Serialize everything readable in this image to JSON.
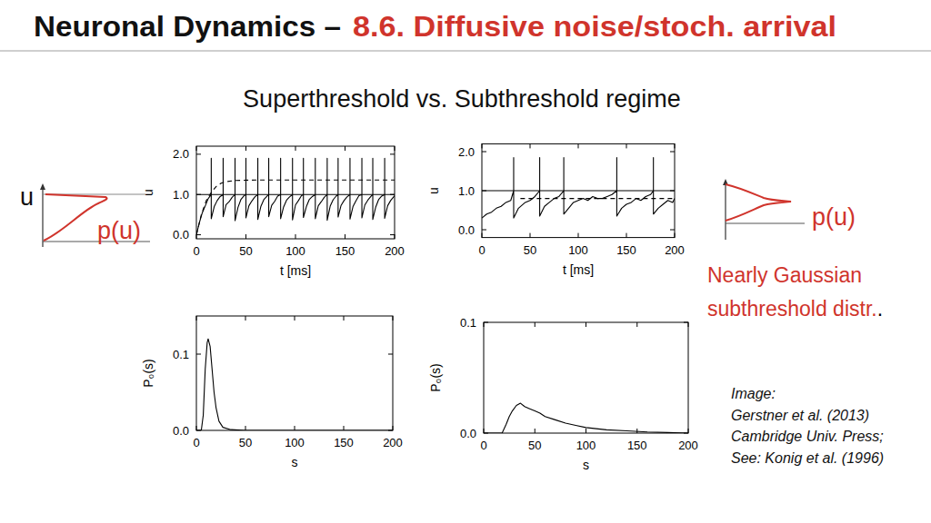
{
  "header": {
    "title_part1": "Neuronal Dynamics –",
    "title_part2": "8.6. Diffusive noise/stoch. arrival",
    "subtitle": "Superthreshold vs. Subthreshold regime"
  },
  "sketches": [
    {
      "ylabel": "u",
      "label": "p(u)"
    },
    {
      "label": "p(u)"
    }
  ],
  "note": {
    "lines": [
      "Nearly Gaussian",
      "subthreshold distr."
    ],
    "suffix": "."
  },
  "credit": [
    "Image:",
    "Gerstner et al. (2013)",
    "Cambridge Univ. Press;",
    "See: Konig et al. (1996)"
  ],
  "chart_data": [
    {
      "type": "line",
      "xlabel": "t [ms]",
      "ylabel": "u",
      "xlim": [
        0,
        200
      ],
      "ylim": [
        -0.1,
        2.2
      ],
      "xticks": [
        0,
        50,
        100,
        150,
        200
      ],
      "yticks": [
        {
          "value": 0,
          "label": "0.0"
        },
        {
          "value": 1,
          "label": "1.0"
        },
        {
          "value": 2,
          "label": "2.0"
        }
      ],
      "series": [
        {
          "color": "#000000",
          "line_style": "solid",
          "x": [
            0,
            3,
            6,
            9,
            12,
            15,
            15,
            15,
            18,
            21,
            24,
            27,
            27,
            27,
            30,
            33,
            36,
            39,
            39,
            39,
            42,
            45,
            48,
            50,
            50,
            50,
            53,
            56,
            59,
            62,
            62,
            62,
            65,
            68,
            71,
            73,
            73,
            73,
            76,
            79,
            82,
            85,
            85,
            85,
            88,
            91,
            94,
            97,
            97,
            97,
            100,
            103,
            106,
            108,
            108,
            108,
            111,
            114,
            117,
            120,
            120,
            120,
            123,
            126,
            129,
            132,
            132,
            132,
            135,
            138,
            141,
            143,
            143,
            143,
            146,
            149,
            152,
            155,
            155,
            155,
            158,
            161,
            164,
            167,
            167,
            167,
            170,
            173,
            176,
            178,
            178,
            178,
            181,
            184,
            187,
            190,
            190,
            190,
            193,
            196,
            199,
            200
          ],
          "values": [
            0,
            0.3,
            0.55,
            0.72,
            0.9,
            1,
            1.9,
            0.4,
            0.7,
            0.85,
            0.95,
            1,
            1.9,
            0.45,
            0.75,
            0.82,
            0.93,
            1,
            1.9,
            0.35,
            0.68,
            0.88,
            0.97,
            1,
            1.9,
            0.42,
            0.72,
            0.84,
            0.94,
            1,
            1.9,
            0.38,
            0.7,
            0.87,
            0.95,
            1,
            1.9,
            0.45,
            0.73,
            0.83,
            0.96,
            1,
            1.9,
            0.4,
            0.69,
            0.86,
            0.94,
            1,
            1.9,
            0.37,
            0.74,
            0.85,
            0.97,
            1,
            1.9,
            0.43,
            0.7,
            0.88,
            0.95,
            1,
            1.9,
            0.4,
            0.72,
            0.82,
            0.93,
            1,
            1.9,
            0.36,
            0.71,
            0.87,
            0.96,
            1,
            1.9,
            0.44,
            0.73,
            0.85,
            0.94,
            1,
            1.9,
            0.39,
            0.7,
            0.84,
            0.97,
            1,
            1.9,
            0.42,
            0.74,
            0.86,
            0.95,
            1,
            1.9,
            0.38,
            0.69,
            0.88,
            0.96,
            1,
            1.9,
            0.41,
            0.72,
            0.85,
            0.94,
            0.97
          ]
        },
        {
          "color": "#000000",
          "line_style": "solid",
          "x": [
            0,
            200
          ],
          "values": [
            1,
            1
          ]
        },
        {
          "color": "#000000",
          "line_style": "dashed",
          "x": [
            0,
            5,
            10,
            15,
            20,
            25,
            30,
            40,
            60,
            100,
            200
          ],
          "values": [
            0,
            0.5,
            0.85,
            1.05,
            1.2,
            1.28,
            1.32,
            1.35,
            1.36,
            1.36,
            1.36
          ]
        }
      ]
    },
    {
      "type": "line",
      "xlabel": "t [ms]",
      "ylabel": "u",
      "xlim": [
        0,
        200
      ],
      "ylim": [
        -0.2,
        2.2
      ],
      "xticks": [
        0,
        50,
        100,
        150,
        200
      ],
      "yticks": [
        {
          "value": 0,
          "label": "0.0"
        },
        {
          "value": 1,
          "label": "1.0"
        },
        {
          "value": 2,
          "label": "2.0"
        }
      ],
      "series": [
        {
          "color": "#000000",
          "line_style": "solid",
          "x": [
            0,
            5,
            10,
            15,
            20,
            25,
            30,
            33,
            33,
            33,
            38,
            45,
            50,
            55,
            60,
            60,
            60,
            65,
            70,
            75,
            80,
            85,
            85,
            85,
            90,
            95,
            100,
            105,
            110,
            115,
            120,
            125,
            130,
            135,
            140,
            140,
            140,
            145,
            150,
            155,
            160,
            165,
            170,
            175,
            178,
            178,
            178,
            183,
            188,
            193,
            198,
            200
          ],
          "values": [
            0.3,
            0.4,
            0.45,
            0.55,
            0.6,
            0.7,
            0.75,
            1,
            1.85,
            0.3,
            0.55,
            0.7,
            0.75,
            0.85,
            1,
            1.85,
            0.35,
            0.6,
            0.7,
            0.8,
            0.85,
            1,
            1.85,
            0.4,
            0.55,
            0.7,
            0.75,
            0.8,
            0.75,
            0.85,
            0.8,
            0.8,
            0.85,
            0.9,
            1,
            1.85,
            0.35,
            0.55,
            0.65,
            0.7,
            0.8,
            0.75,
            0.85,
            0.9,
            1,
            1.85,
            0.4,
            0.55,
            0.65,
            0.75,
            0.7,
            0.8
          ]
        },
        {
          "color": "#000000",
          "line_style": "solid",
          "x": [
            0,
            200
          ],
          "values": [
            1,
            1
          ]
        },
        {
          "color": "#000000",
          "line_style": "dashed",
          "x": [
            40,
            200
          ],
          "values": [
            0.8,
            0.8
          ]
        }
      ]
    },
    {
      "type": "line",
      "xlabel": "s",
      "ylabel": "P₀(s)",
      "xlim": [
        0,
        200
      ],
      "ylim": [
        0,
        0.15
      ],
      "xticks": [
        0,
        50,
        100,
        150,
        200
      ],
      "yticks": [
        {
          "value": 0,
          "label": "0.0"
        },
        0.1
      ],
      "series": [
        {
          "color": "#000000",
          "line_style": "solid",
          "x": [
            0,
            5,
            7,
            9,
            11,
            12,
            14,
            16,
            18,
            20,
            23,
            27,
            35,
            50,
            200
          ],
          "values": [
            0,
            0,
            0.02,
            0.08,
            0.115,
            0.12,
            0.11,
            0.08,
            0.05,
            0.03,
            0.012,
            0.004,
            0.001,
            0,
            0
          ]
        }
      ]
    },
    {
      "type": "line",
      "xlabel": "s",
      "ylabel": "P₀(s)",
      "xlim": [
        0,
        200
      ],
      "ylim": [
        0,
        0.1
      ],
      "xticks": [
        0,
        50,
        100,
        150,
        200
      ],
      "yticks": [
        {
          "value": 0,
          "label": "0.0"
        },
        0.1
      ],
      "series": [
        {
          "color": "#000000",
          "line_style": "solid",
          "x": [
            0,
            18,
            22,
            25,
            28,
            32,
            36,
            40,
            45,
            50,
            55,
            60,
            70,
            80,
            90,
            100,
            120,
            140,
            160,
            180,
            200
          ],
          "values": [
            0,
            0,
            0.008,
            0.015,
            0.02,
            0.025,
            0.027,
            0.024,
            0.022,
            0.02,
            0.018,
            0.015,
            0.012,
            0.009,
            0.007,
            0.005,
            0.003,
            0.002,
            0.001,
            0.0005,
            0
          ]
        }
      ]
    }
  ]
}
